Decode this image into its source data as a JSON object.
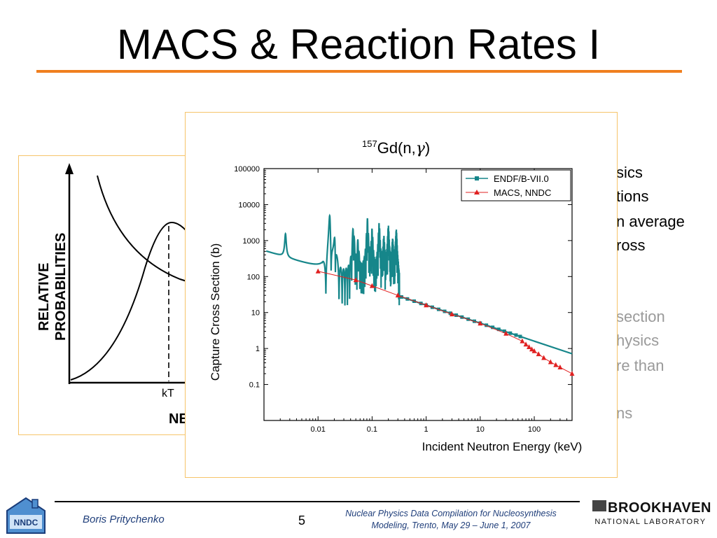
{
  "slide": {
    "title": "MACS & Reaction Rates I",
    "bullet_fragments_dark": [
      "sics",
      "tions",
      "n average",
      "ross"
    ],
    "bullet_fragments_light": [
      "section",
      "hysics",
      "re than",
      "ns"
    ]
  },
  "left_figure": {
    "ylabel_line1": "RELATIVE",
    "ylabel_line2": "PROBABILITIES",
    "kt_label": "kT",
    "xlabel_partial": "NE"
  },
  "chart_data": {
    "type": "line",
    "title_mass": "157",
    "title_reaction": "Gd(n,",
    "title_gamma": "γ",
    "title_close": ")",
    "xlabel": "Incident Neutron Energy (keV)",
    "ylabel": "Capture Cross Section (b)",
    "xscale": "log",
    "yscale": "log",
    "xlim": [
      0.001,
      500
    ],
    "ylim": [
      0.01,
      100000
    ],
    "x_ticks": [
      "0.01",
      "0.1",
      "1",
      "10",
      "100"
    ],
    "y_ticks": [
      "0.1",
      "1",
      "10",
      "100",
      "1000",
      "10000",
      "100000"
    ],
    "legend_position": "top-right",
    "colors": {
      "endf": "#16868a",
      "macs": "#e02020"
    },
    "series": [
      {
        "name": "ENDF/B-VII.0",
        "style": "line-with-square-markers",
        "resonances": [
          {
            "e": 0.0025,
            "peak": 1200
          },
          {
            "e": 0.0165,
            "peak": 6000
          },
          {
            "e": 0.0205,
            "peak": 2000
          },
          {
            "e": 0.045,
            "peak": 3000
          },
          {
            "e": 0.055,
            "peak": 1000
          },
          {
            "e": 0.082,
            "peak": 4000
          },
          {
            "e": 0.1,
            "peak": 2000
          },
          {
            "e": 0.135,
            "peak": 3000
          },
          {
            "e": 0.165,
            "peak": 1200
          },
          {
            "e": 0.2,
            "peak": 2500
          },
          {
            "e": 0.24,
            "peak": 1000
          },
          {
            "e": 0.28,
            "peak": 2000
          }
        ],
        "marker_x": [
          0.35,
          0.45,
          0.6,
          0.8,
          1,
          1.3,
          1.7,
          2.2,
          2.8,
          3.6,
          4.6,
          6,
          7.8,
          10,
          13,
          17,
          22,
          28,
          36,
          46,
          55
        ]
      },
      {
        "name": "MACS, NNDC",
        "style": "line-with-triangle-markers",
        "x": [
          0.01,
          0.05,
          0.1,
          0.3,
          1,
          3,
          10,
          30,
          60,
          70,
          80,
          90,
          100,
          120,
          150,
          200,
          250,
          300,
          500
        ],
        "y": [
          140,
          80,
          55,
          30,
          16,
          9,
          5,
          2.6,
          1.6,
          1.3,
          1.1,
          0.95,
          0.85,
          0.7,
          0.55,
          0.42,
          0.35,
          0.3,
          0.2
        ]
      }
    ]
  },
  "footer": {
    "logo_text": "NNDC",
    "author": "Boris Pritychenko",
    "page_number": "5",
    "conference_line1": "Nuclear Physics Data Compilation for Nucleosynthesis",
    "conference_line2": "Modeling, Trento, May 29 – June 1,  2007",
    "lab_name_line1": "BROOKHAVEN",
    "lab_name_line2": "NATIONAL LABORATORY"
  }
}
